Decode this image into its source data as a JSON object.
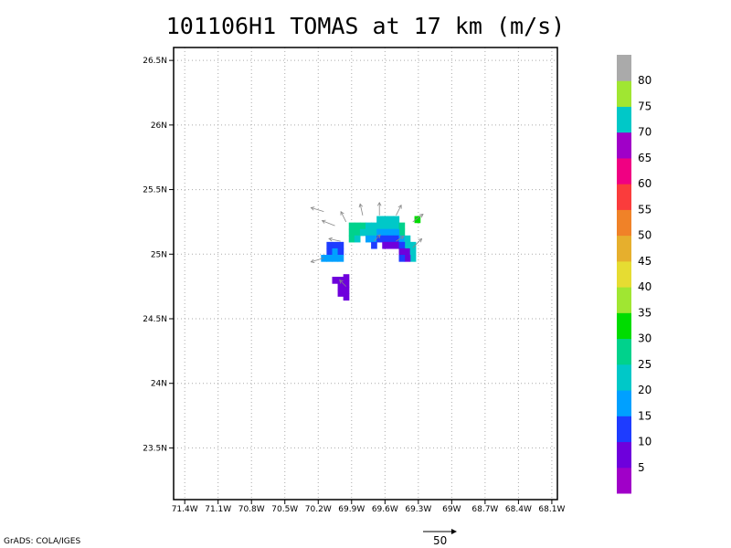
{
  "chart_data": {
    "type": "heatmap",
    "title": "101106H1 TOMAS at 17 km (m/s)",
    "x_ticks": [
      "71.4W",
      "71.1W",
      "70.8W",
      "70.5W",
      "70.2W",
      "69.9W",
      "69.6W",
      "69.3W",
      "69W",
      "68.7W",
      "68.4W",
      "68.1W"
    ],
    "x_tick_values": [
      -71.4,
      -71.1,
      -70.8,
      -70.5,
      -70.2,
      -69.9,
      -69.6,
      -69.3,
      -69.0,
      -68.7,
      -68.4,
      -68.1
    ],
    "y_ticks": [
      "23.5N",
      "24N",
      "24.5N",
      "25N",
      "25.5N",
      "26N",
      "26.5N"
    ],
    "y_tick_values": [
      23.5,
      24.0,
      24.5,
      25.0,
      25.5,
      26.0,
      26.5
    ],
    "xlim": [
      -71.5,
      -68.05
    ],
    "ylim": [
      23.1,
      26.6
    ],
    "grid": true,
    "colorbar": {
      "labels": [
        "5",
        "10",
        "15",
        "20",
        "25",
        "30",
        "35",
        "40",
        "45",
        "50",
        "55",
        "60",
        "65",
        "70",
        "75",
        "80"
      ],
      "colors": [
        "#a000c8",
        "#6e00dc",
        "#1e3cff",
        "#00a0ff",
        "#00c8c8",
        "#00d28c",
        "#00dc00",
        "#a0e632",
        "#e6dc32",
        "#e6af2d",
        "#f08228",
        "#fa3c3c",
        "#f00082",
        "#a000c8",
        "#00c8c8",
        "#a0e632",
        "#aaaaaa"
      ]
    },
    "cells_legend": "lon/lat cell centers with wind speed (m/s)",
    "cells": [
      {
        "lon": -69.95,
        "lat": 24.82,
        "v": 9
      },
      {
        "lon": -69.95,
        "lat": 24.77,
        "v": 9
      },
      {
        "lon": -69.95,
        "lat": 24.72,
        "v": 9
      },
      {
        "lon": -69.95,
        "lat": 24.67,
        "v": 9
      },
      {
        "lon": -70.0,
        "lat": 24.8,
        "v": 9
      },
      {
        "lon": -70.0,
        "lat": 24.75,
        "v": 9
      },
      {
        "lon": -70.05,
        "lat": 24.8,
        "v": 9
      },
      {
        "lon": -70.0,
        "lat": 24.7,
        "v": 9
      },
      {
        "lon": -70.1,
        "lat": 25.07,
        "v": 14
      },
      {
        "lon": -70.05,
        "lat": 25.07,
        "v": 14
      },
      {
        "lon": -70.0,
        "lat": 25.07,
        "v": 14
      },
      {
        "lon": -70.1,
        "lat": 25.02,
        "v": 14
      },
      {
        "lon": -70.05,
        "lat": 25.02,
        "v": 16
      },
      {
        "lon": -70.0,
        "lat": 25.02,
        "v": 14
      },
      {
        "lon": -70.15,
        "lat": 24.97,
        "v": 18
      },
      {
        "lon": -70.1,
        "lat": 24.97,
        "v": 18
      },
      {
        "lon": -70.05,
        "lat": 24.97,
        "v": 18
      },
      {
        "lon": -70.0,
        "lat": 24.97,
        "v": 18
      },
      {
        "lon": -69.9,
        "lat": 25.22,
        "v": 26
      },
      {
        "lon": -69.85,
        "lat": 25.22,
        "v": 26
      },
      {
        "lon": -69.8,
        "lat": 25.22,
        "v": 26
      },
      {
        "lon": -69.9,
        "lat": 25.17,
        "v": 26
      },
      {
        "lon": -69.85,
        "lat": 25.17,
        "v": 26
      },
      {
        "lon": -69.8,
        "lat": 25.17,
        "v": 24
      },
      {
        "lon": -69.9,
        "lat": 25.12,
        "v": 26
      },
      {
        "lon": -69.85,
        "lat": 25.12,
        "v": 24
      },
      {
        "lon": -69.75,
        "lat": 25.22,
        "v": 24
      },
      {
        "lon": -69.7,
        "lat": 25.22,
        "v": 24
      },
      {
        "lon": -69.65,
        "lat": 25.27,
        "v": 22
      },
      {
        "lon": -69.6,
        "lat": 25.27,
        "v": 22
      },
      {
        "lon": -69.55,
        "lat": 25.27,
        "v": 22
      },
      {
        "lon": -69.5,
        "lat": 25.27,
        "v": 22
      },
      {
        "lon": -69.75,
        "lat": 25.17,
        "v": 22
      },
      {
        "lon": -69.7,
        "lat": 25.17,
        "v": 22
      },
      {
        "lon": -69.65,
        "lat": 25.22,
        "v": 22
      },
      {
        "lon": -69.6,
        "lat": 25.22,
        "v": 22
      },
      {
        "lon": -69.55,
        "lat": 25.22,
        "v": 22
      },
      {
        "lon": -69.5,
        "lat": 25.22,
        "v": 24
      },
      {
        "lon": -69.45,
        "lat": 25.22,
        "v": 26
      },
      {
        "lon": -69.45,
        "lat": 25.17,
        "v": 26
      },
      {
        "lon": -69.75,
        "lat": 25.12,
        "v": 19
      },
      {
        "lon": -69.7,
        "lat": 25.12,
        "v": 19
      },
      {
        "lon": -69.65,
        "lat": 25.17,
        "v": 19
      },
      {
        "lon": -69.6,
        "lat": 25.17,
        "v": 19
      },
      {
        "lon": -69.55,
        "lat": 25.17,
        "v": 19
      },
      {
        "lon": -69.5,
        "lat": 25.17,
        "v": 19
      },
      {
        "lon": -69.7,
        "lat": 25.07,
        "v": 13
      },
      {
        "lon": -69.65,
        "lat": 25.12,
        "v": 13
      },
      {
        "lon": -69.6,
        "lat": 25.12,
        "v": 13
      },
      {
        "lon": -69.55,
        "lat": 25.12,
        "v": 13
      },
      {
        "lon": -69.5,
        "lat": 25.12,
        "v": 13
      },
      {
        "lon": -69.45,
        "lat": 25.12,
        "v": 19
      },
      {
        "lon": -69.4,
        "lat": 25.12,
        "v": 24
      },
      {
        "lon": -69.4,
        "lat": 25.07,
        "v": 22
      },
      {
        "lon": -69.6,
        "lat": 25.07,
        "v": 9
      },
      {
        "lon": -69.55,
        "lat": 25.07,
        "v": 9
      },
      {
        "lon": -69.5,
        "lat": 25.07,
        "v": 9
      },
      {
        "lon": -69.45,
        "lat": 25.07,
        "v": 13
      },
      {
        "lon": -69.45,
        "lat": 25.02,
        "v": 9
      },
      {
        "lon": -69.4,
        "lat": 25.02,
        "v": 9
      },
      {
        "lon": -69.35,
        "lat": 25.02,
        "v": 24
      },
      {
        "lon": -69.35,
        "lat": 25.07,
        "v": 24
      },
      {
        "lon": -69.35,
        "lat": 24.97,
        "v": 24
      },
      {
        "lon": -69.4,
        "lat": 24.97,
        "v": 9
      },
      {
        "lon": -69.45,
        "lat": 24.97,
        "v": 13
      },
      {
        "lon": -69.31,
        "lat": 25.27,
        "v": 32
      }
    ],
    "vectors": [
      {
        "lon": -70.15,
        "lat": 25.33,
        "u": -1,
        "v": 0.3
      },
      {
        "lon": -70.05,
        "lat": 25.22,
        "u": -1,
        "v": 0.4
      },
      {
        "lon": -69.95,
        "lat": 25.25,
        "u": -0.4,
        "v": 0.8
      },
      {
        "lon": -69.8,
        "lat": 25.3,
        "u": -0.2,
        "v": 0.9
      },
      {
        "lon": -69.65,
        "lat": 25.3,
        "u": 0,
        "v": 1
      },
      {
        "lon": -69.5,
        "lat": 25.3,
        "u": 0.4,
        "v": 0.8
      },
      {
        "lon": -69.35,
        "lat": 25.25,
        "u": 0.8,
        "v": 0.6
      },
      {
        "lon": -69.35,
        "lat": 25.05,
        "u": 0.7,
        "v": 0.7
      },
      {
        "lon": -70.0,
        "lat": 25.1,
        "u": -0.9,
        "v": 0.2
      },
      {
        "lon": -70.15,
        "lat": 24.97,
        "u": -1,
        "v": -0.3
      },
      {
        "lon": -69.7,
        "lat": 25.1,
        "u": 0.5,
        "v": 0.5
      },
      {
        "lon": -69.5,
        "lat": 25.1,
        "u": 0.6,
        "v": 0.4
      },
      {
        "lon": -69.95,
        "lat": 24.75,
        "u": -0.5,
        "v": 0.5
      }
    ],
    "vector_reference_label": "50",
    "credit": "GrADS: COLA/IGES"
  }
}
